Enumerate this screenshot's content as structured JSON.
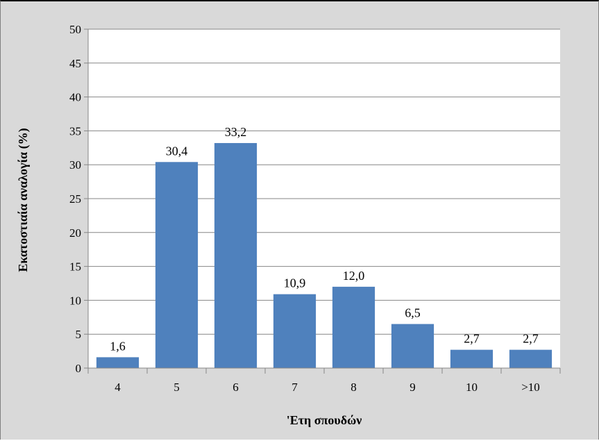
{
  "chart_data": {
    "type": "bar",
    "categories": [
      "4",
      "5",
      "6",
      "7",
      "8",
      "9",
      "10",
      ">10"
    ],
    "values": [
      1.6,
      30.4,
      33.2,
      10.9,
      12.0,
      6.5,
      2.7,
      2.7
    ],
    "data_labels": [
      "1,6",
      "30,4",
      "33,2",
      "10,9",
      "12,0",
      "6,5",
      "2,7",
      "2,7"
    ],
    "xlabel": "'Ετη σπουδών",
    "ylabel": "Εκατοστιαία αναλογία (%)",
    "ylim": [
      0,
      50
    ],
    "yticks": [
      "0",
      "5",
      "10",
      "15",
      "20",
      "25",
      "30",
      "35",
      "40",
      "45",
      "50"
    ],
    "grid": true,
    "legend": "none",
    "colors": {
      "bar": "#4f81bd",
      "plot_background": "#ffffff",
      "chart_background": "#d9d9d9",
      "gridline": "#868686"
    }
  }
}
